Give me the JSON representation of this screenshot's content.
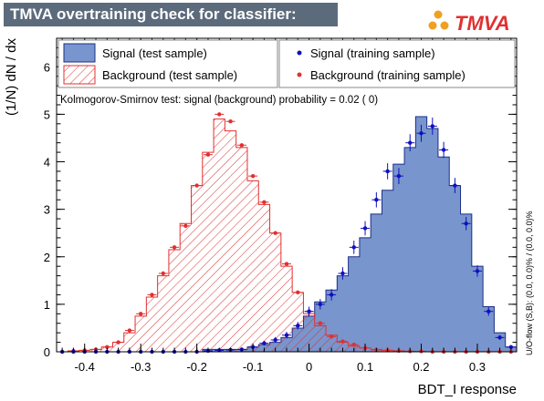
{
  "title": "TMVA overtraining check for classifier: BDT_I",
  "logo_text": "TMVA",
  "ks_text": "Kolmogorov-Smirnov test: signal (background) probability =  0.02 (    0)",
  "side_text": "U/O-flow (S,B): (0.0, 0.0)% / (0.0, 0.0)%",
  "legend": {
    "sig_test": "Signal (test sample)",
    "bkg_test": "Background (test sample)",
    "sig_train": "Signal (training sample)",
    "bkg_train": "Background (training sample)"
  },
  "colors": {
    "signal_fill": "#7895cd",
    "signal_line": "#1c2f8a",
    "background": "#e03030",
    "signal_marker": "#1010c0",
    "title_bg": "#5c6b7c"
  },
  "chart_data": {
    "type": "histogram",
    "xlabel": "BDT_I response",
    "ylabel": "(1/N) dN / dx",
    "xlim": [
      -0.45,
      0.37
    ],
    "ylim": [
      0,
      6.6
    ],
    "xticks": [
      -0.4,
      -0.3,
      -0.2,
      -0.1,
      0,
      0.1,
      0.2,
      0.3
    ],
    "xtick_labels": [
      "-0.4",
      "-0.3",
      "-0.2",
      "-0.1",
      "0",
      "0.1",
      "0.2",
      "0.3"
    ],
    "yticks": [
      0,
      1,
      2,
      3,
      4,
      5,
      6
    ],
    "ytick_labels": [
      "0",
      "1",
      "2",
      "3",
      "4",
      "5",
      "6"
    ],
    "bin_edges": [
      -0.45,
      -0.43,
      -0.41,
      -0.39,
      -0.37,
      -0.35,
      -0.33,
      -0.31,
      -0.29,
      -0.27,
      -0.25,
      -0.23,
      -0.21,
      -0.19,
      -0.17,
      -0.15,
      -0.13,
      -0.11,
      -0.09,
      -0.07,
      -0.05,
      -0.03,
      -0.01,
      0.01,
      0.03,
      0.05,
      0.07,
      0.09,
      0.11,
      0.13,
      0.15,
      0.17,
      0.19,
      0.21,
      0.23,
      0.25,
      0.27,
      0.29,
      0.31,
      0.33,
      0.35,
      0.37
    ],
    "series": [
      {
        "name": "Signal (test sample)",
        "style": "filled",
        "values": [
          0,
          0,
          0,
          0,
          0,
          0,
          0,
          0,
          0,
          0,
          0,
          0,
          0,
          0.05,
          0.05,
          0.05,
          0.05,
          0.1,
          0.15,
          0.2,
          0.3,
          0.5,
          0.75,
          1.05,
          1.3,
          1.6,
          2.0,
          2.4,
          2.9,
          3.4,
          3.95,
          4.3,
          4.95,
          4.7,
          4.1,
          3.5,
          2.9,
          1.8,
          0.95,
          0.4,
          0.1
        ]
      },
      {
        "name": "Background (test sample)",
        "style": "hatched",
        "values": [
          0,
          0.02,
          0.03,
          0.05,
          0.1,
          0.2,
          0.4,
          0.75,
          1.15,
          1.6,
          2.15,
          2.7,
          3.5,
          4.2,
          4.9,
          4.65,
          4.3,
          3.6,
          3.1,
          2.5,
          1.8,
          1.25,
          0.8,
          0.55,
          0.35,
          0.2,
          0.12,
          0.08,
          0.05,
          0.03,
          0.02,
          0.01,
          0,
          0,
          0,
          0,
          0,
          0,
          0,
          0,
          0
        ]
      },
      {
        "name": "Signal (training sample)",
        "style": "points",
        "values": [
          0,
          0,
          0,
          0,
          0,
          0,
          0,
          0,
          0,
          0,
          0,
          0,
          0,
          0.02,
          0.03,
          0.04,
          0.05,
          0.1,
          0.18,
          0.25,
          0.35,
          0.55,
          0.85,
          1.0,
          1.2,
          1.65,
          2.2,
          2.6,
          3.2,
          3.8,
          3.7,
          4.4,
          4.6,
          4.75,
          4.25,
          3.5,
          2.7,
          1.7,
          0.85,
          0.3,
          0.1
        ],
        "errors": [
          0,
          0,
          0,
          0,
          0,
          0,
          0,
          0,
          0,
          0,
          0,
          0,
          0,
          0.02,
          0.02,
          0.02,
          0.03,
          0.04,
          0.05,
          0.06,
          0.07,
          0.08,
          0.1,
          0.11,
          0.12,
          0.13,
          0.14,
          0.15,
          0.16,
          0.17,
          0.17,
          0.18,
          0.18,
          0.18,
          0.17,
          0.16,
          0.14,
          0.12,
          0.09,
          0.05,
          0.03
        ]
      },
      {
        "name": "Background (training sample)",
        "style": "points",
        "values": [
          0,
          0.02,
          0.03,
          0.05,
          0.1,
          0.2,
          0.45,
          0.8,
          1.2,
          1.65,
          2.2,
          2.65,
          3.5,
          4.15,
          5.0,
          4.85,
          4.35,
          3.7,
          3.15,
          2.5,
          1.85,
          1.25,
          0.85,
          0.6,
          0.32,
          0.22,
          0.15,
          0.08,
          0.04,
          0.03,
          0.02,
          0.01,
          0.01,
          0,
          0,
          0,
          0,
          0,
          0,
          0,
          0
        ]
      }
    ]
  }
}
